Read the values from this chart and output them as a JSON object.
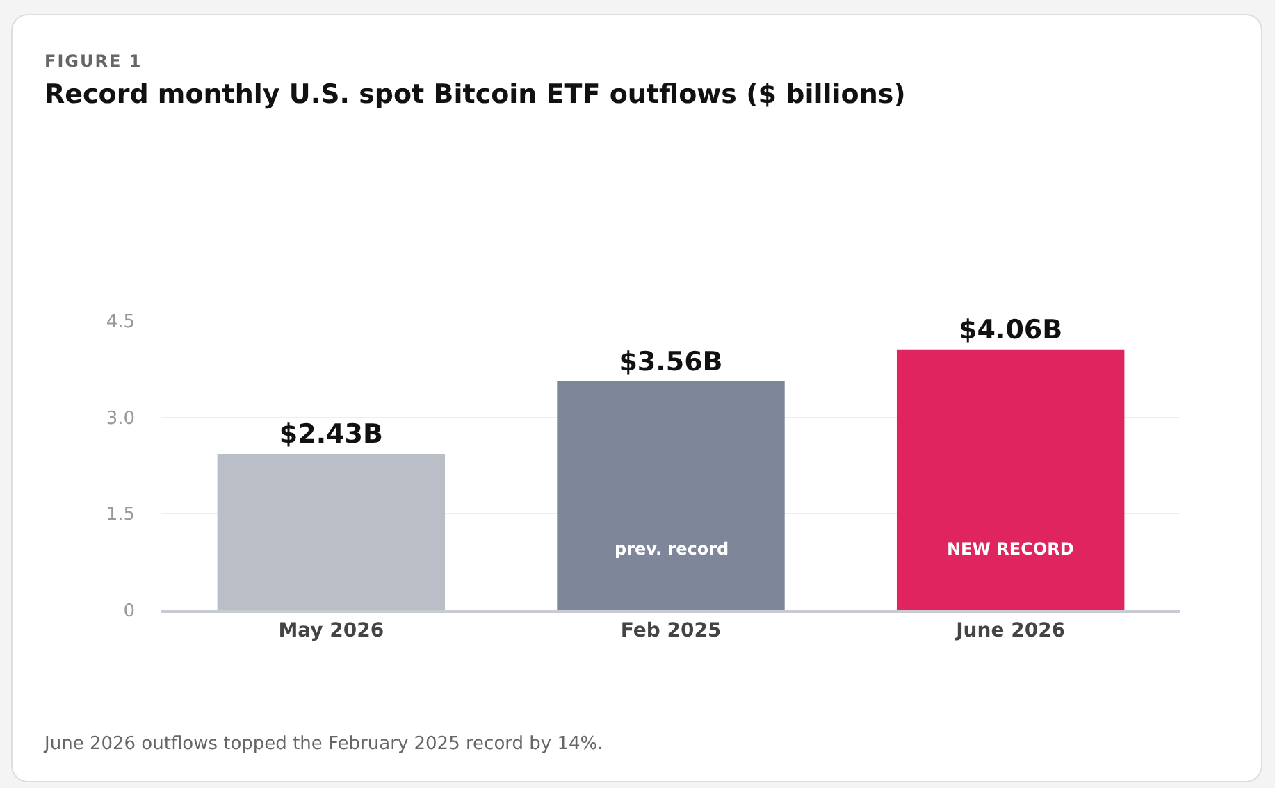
{
  "chart_data": {
    "type": "bar",
    "subtitle": "FIGURE 1",
    "title": "Record monthly U.S. spot Bitcoin ETF outflows ($ billions)",
    "categories": [
      "May 2026",
      "Feb 2025",
      "June 2026"
    ],
    "values": [
      2.43,
      3.56,
      4.06
    ],
    "colors": [
      "#b9bec7",
      "#7d8799",
      "#e0245e"
    ],
    "value_labels": [
      "$2.43B",
      "$3.56B",
      "$4.06B"
    ],
    "ylim": [
      0,
      4.5
    ],
    "yticks": [
      0,
      1.5,
      {
        "value": 3,
        "label": "3.0"
      },
      4.5
    ],
    "grid": "y",
    "annotations": [
      "prev. record",
      "NEW RECORD",
      "June 2026 outflows topped the February 2025 record by 14%."
    ]
  }
}
